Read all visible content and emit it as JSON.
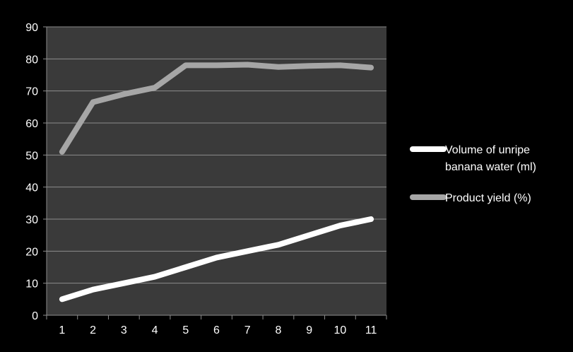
{
  "chart_data": {
    "type": "line",
    "title": "",
    "xlabel": "",
    "ylabel": "",
    "categories": [
      "1",
      "2",
      "3",
      "4",
      "5",
      "6",
      "7",
      "8",
      "9",
      "10",
      "11"
    ],
    "ylim": [
      0,
      90
    ],
    "y_ticks": [
      "0",
      "10",
      "20",
      "30",
      "40",
      "50",
      "60",
      "70",
      "80",
      "90"
    ],
    "grid": true,
    "legend_position": "right",
    "background_color": "#000000",
    "plot_background_color": "#3a3a3a",
    "gridline_color": "#8c8c8c",
    "text_color": "#ffffff",
    "series": [
      {
        "name": "Volume of unripe banana water (ml)",
        "legend_lines": [
          "Volume of unripe",
          "banana water (ml)"
        ],
        "color": "#ffffff",
        "values": [
          5,
          8,
          10,
          12,
          15,
          18,
          20,
          22,
          25,
          28,
          30
        ]
      },
      {
        "name": "Product yield (%)",
        "legend_lines": [
          "Product yield (%)"
        ],
        "color": "#a6a6a6",
        "values": [
          51,
          66.5,
          69,
          71,
          78,
          78,
          78.2,
          77.5,
          77.8,
          78,
          77.3
        ]
      }
    ]
  }
}
